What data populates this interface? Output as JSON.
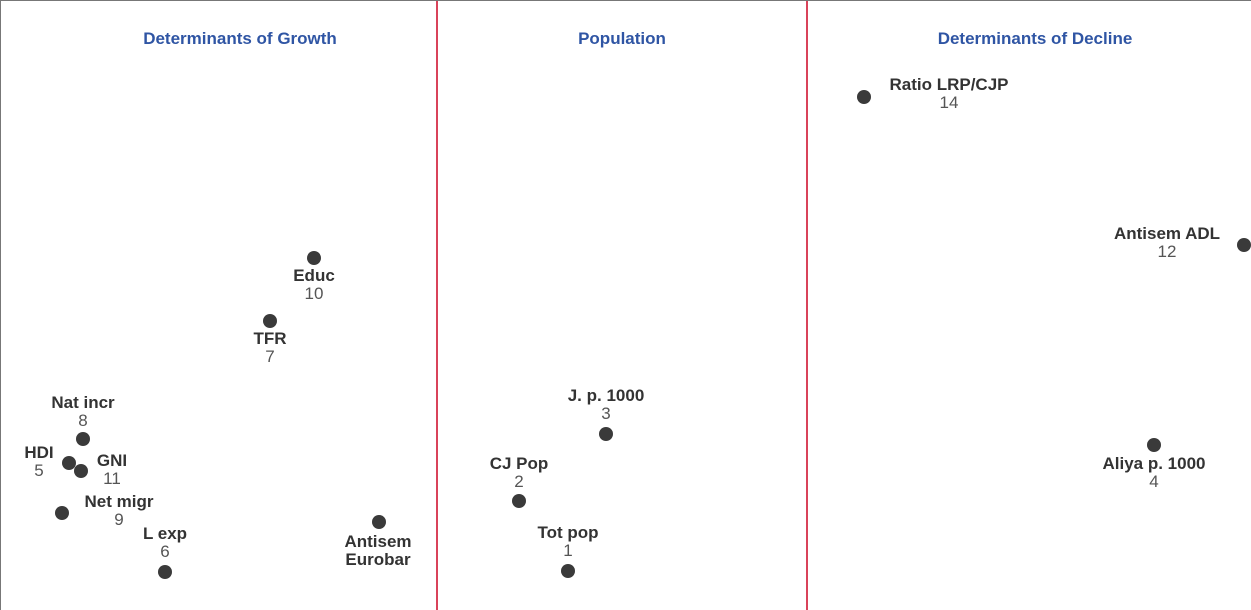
{
  "panels": [
    {
      "title": "Determinants of Growth",
      "points": [
        {
          "label": "Educ",
          "number": 10
        },
        {
          "label": "TFR",
          "number": 7
        },
        {
          "label": "Nat incr",
          "number": 8
        },
        {
          "label": "HDI",
          "number": 5
        },
        {
          "label": "GNI",
          "number": 11
        },
        {
          "label": "Net migr",
          "number": 9
        },
        {
          "label": "L exp",
          "number": 6
        },
        {
          "label": "Antisem Eurobar"
        }
      ]
    },
    {
      "title": "Population",
      "points": [
        {
          "label": "J. p. 1000",
          "number": 3
        },
        {
          "label": "CJ Pop",
          "number": 2
        },
        {
          "label": "Tot pop",
          "number": 1
        }
      ]
    },
    {
      "title": "Determinants of Decline",
      "points": [
        {
          "label": "Ratio LRP/CJP",
          "number": 14
        },
        {
          "label": "Antisem ADL",
          "number": 12
        },
        {
          "label": "Aliya p. 1000",
          "number": 4
        }
      ]
    }
  ]
}
